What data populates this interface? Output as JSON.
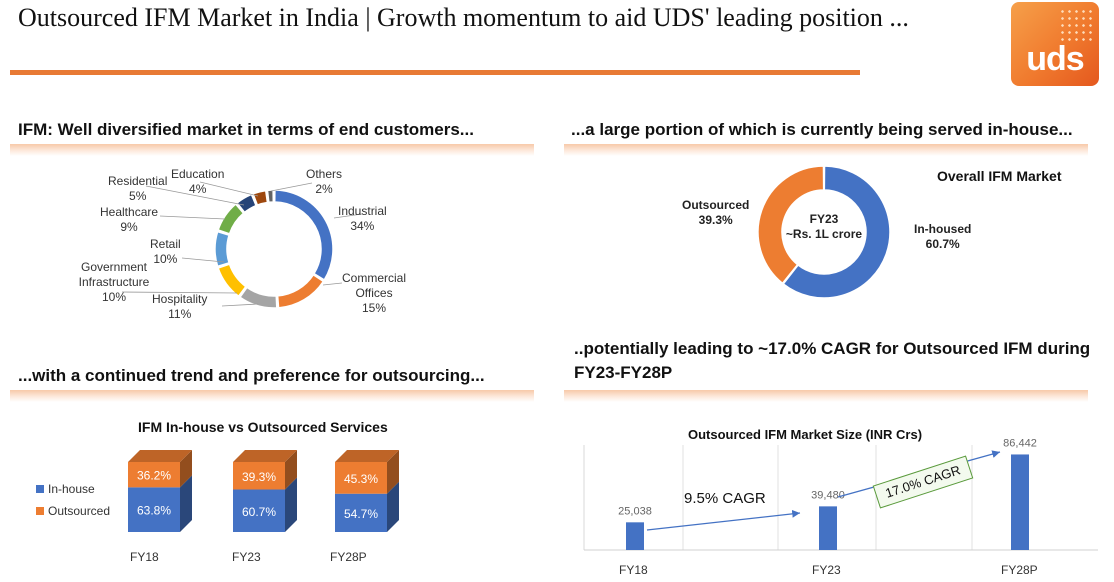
{
  "header": {
    "title": "Outsourced IFM Market in India | Growth momentum to aid UDS' leading position ...",
    "logo_text": "uds"
  },
  "colors": {
    "accent": "#e87a35",
    "blue": "#4472c4",
    "orange": "#ed7d31",
    "band": "#f7c9a9"
  },
  "sections": {
    "diversified": "IFM: Well diversified market in terms of end customers...",
    "inhouse": "...a large portion of which is currently being served in-house...",
    "trend": "...with a continued trend and preference for outsourcing...",
    "cagr": "..potentially leading to ~17.0% CAGR for Outsourced IFM during FY23-FY28P"
  },
  "chart_data": [
    {
      "type": "pie",
      "variant": "donut",
      "title": "",
      "slices": [
        {
          "name": "Industrial",
          "value": 34,
          "label": "34%",
          "color": "#4472c4"
        },
        {
          "name": "Commercial Offices",
          "value": 15,
          "label": "15%",
          "color": "#ed7d31"
        },
        {
          "name": "Hospitality",
          "value": 11,
          "label": "11%",
          "color": "#a5a5a5"
        },
        {
          "name": "Government Infrastructure",
          "value": 10,
          "label": "10%",
          "color": "#ffc000"
        },
        {
          "name": "Retail",
          "value": 10,
          "label": "10%",
          "color": "#5b9bd5"
        },
        {
          "name": "Healthcare",
          "value": 9,
          "label": "9%",
          "color": "#70ad47"
        },
        {
          "name": "Residential",
          "value": 5,
          "label": "5%",
          "color": "#264478"
        },
        {
          "name": "Education",
          "value": 4,
          "label": "4%",
          "color": "#9e480e"
        },
        {
          "name": "Others",
          "value": 2,
          "label": "2%",
          "color": "#636363"
        }
      ]
    },
    {
      "type": "pie",
      "variant": "donut",
      "title": "Overall IFM Market",
      "center_label": {
        "line1": "FY23",
        "line2": "~Rs. 1L crore"
      },
      "slices": [
        {
          "name": "In-housed",
          "value": 60.7,
          "label": "60.7%",
          "color": "#4472c4"
        },
        {
          "name": "Outsourced",
          "value": 39.3,
          "label": "39.3%",
          "color": "#ed7d31"
        }
      ]
    },
    {
      "type": "bar",
      "variant": "stacked-100-3d",
      "title": "IFM In-house vs Outsourced Services",
      "categories": [
        "FY18",
        "FY23",
        "FY28P"
      ],
      "series": [
        {
          "name": "In-house",
          "values": [
            63.8,
            60.7,
            54.7
          ],
          "labels": [
            "63.8%",
            "60.7%",
            "54.7%"
          ],
          "color": "#4472c4"
        },
        {
          "name": "Outsourced",
          "values": [
            36.2,
            39.3,
            45.3
          ],
          "labels": [
            "36.2%",
            "39.3%",
            "45.3%"
          ],
          "color": "#ed7d31"
        }
      ],
      "legend": "left"
    },
    {
      "type": "bar",
      "title": "Outsourced IFM Market Size (INR Crs)",
      "categories": [
        "FY18",
        "FY23",
        "FY28P"
      ],
      "values": [
        25038,
        39480,
        86442
      ],
      "value_labels": [
        "25,038",
        "39,480",
        "86,442"
      ],
      "ylim": [
        0,
        95000
      ],
      "annotations": [
        {
          "text": "9.5% CAGR",
          "from": "FY18",
          "to": "FY23"
        },
        {
          "text": "17.0% CAGR",
          "from": "FY23",
          "to": "FY28P"
        }
      ]
    }
  ]
}
